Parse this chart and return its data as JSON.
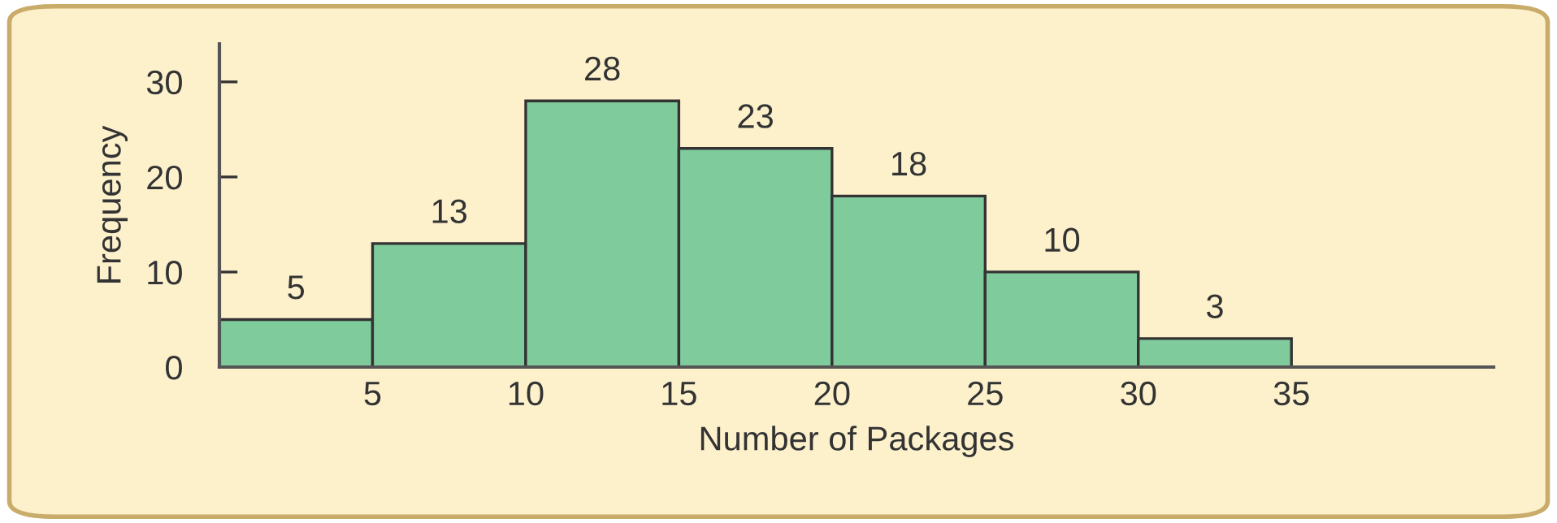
{
  "chart_data": {
    "type": "histogram",
    "xlabel": "Number of Packages",
    "ylabel": "Frequency",
    "bins": [
      0,
      5,
      10,
      15,
      20,
      25,
      30,
      35
    ],
    "values": [
      5,
      13,
      28,
      23,
      18,
      10,
      3
    ],
    "color": "#80cb9c",
    "data_labels": true,
    "xlim": [
      0,
      41.6
    ],
    "ylim": [
      0,
      34
    ],
    "xticks": [
      5,
      10,
      15,
      20,
      25,
      30,
      35
    ],
    "yticks": [
      0,
      10,
      20,
      30
    ],
    "grid": false,
    "legend": false
  }
}
